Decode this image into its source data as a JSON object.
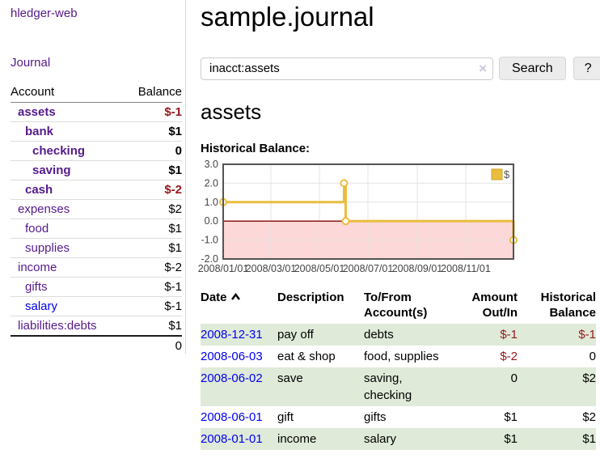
{
  "sidebar": {
    "app_title": "hledger-web",
    "nav": {
      "journal_label": "Journal"
    },
    "accounts_table": {
      "headers": {
        "account": "Account",
        "balance": "Balance"
      },
      "rows": [
        {
          "name": "assets",
          "indent": 0,
          "strong": true,
          "balance": "$-1"
        },
        {
          "name": "bank",
          "indent": 1,
          "strong": true,
          "balance": "$1"
        },
        {
          "name": "checking",
          "indent": 2,
          "strong": true,
          "balance": "0"
        },
        {
          "name": "saving",
          "indent": 2,
          "strong": true,
          "balance": "$1"
        },
        {
          "name": "cash",
          "indent": 1,
          "strong": true,
          "balance": "$-2"
        },
        {
          "name": "expenses",
          "indent": 0,
          "strong": false,
          "balance": "$2"
        },
        {
          "name": "food",
          "indent": 1,
          "strong": false,
          "balance": "$1"
        },
        {
          "name": "supplies",
          "indent": 1,
          "strong": false,
          "balance": "$1"
        },
        {
          "name": "income",
          "indent": 0,
          "strong": false,
          "balance": "$-2"
        },
        {
          "name": "gifts",
          "indent": 1,
          "strong": false,
          "balance": "$-1"
        },
        {
          "name": "salary",
          "indent": 1,
          "strong": false,
          "balance": "$-1",
          "blue": true
        },
        {
          "name": "liabilities:debts",
          "indent": 0,
          "strong": false,
          "balance": "$1"
        }
      ],
      "total": "0"
    }
  },
  "header": {
    "title": "sample.journal"
  },
  "search": {
    "query": "inacct:assets",
    "clear_icon": "×",
    "button_label": "Search",
    "help_label": "?"
  },
  "account_page": {
    "heading": "assets"
  },
  "chart_data": {
    "type": "line",
    "title": "Historical Balance:",
    "step": true,
    "grid": true,
    "legend_position": "top-right",
    "series": [
      {
        "name": "$",
        "color": "#e9bd3e",
        "points": [
          [
            "2008-01-01",
            1
          ],
          [
            "2008-06-01",
            2
          ],
          [
            "2008-06-03",
            0
          ],
          [
            "2008-12-31",
            -1
          ]
        ]
      }
    ],
    "x_range": [
      "2008-01-01",
      "2008-12-31"
    ],
    "x_ticks": [
      "2008/01/01",
      "2008/03/01",
      "2008/05/01",
      "2008/07/01",
      "2008/09/01",
      "2008/11/01"
    ],
    "y_ticks": [
      3.0,
      2.0,
      1.0,
      0.0,
      -1.0,
      -2.0
    ],
    "ylim": [
      -2,
      3
    ],
    "negative_region_color": "#fcd8d8",
    "zero_line_color": "#8c1717",
    "border_color": "#545454"
  },
  "register": {
    "headers": {
      "date": "Date",
      "date_sort_icon": "chevron-up",
      "description": "Description",
      "accounts": "To/From Account(s)",
      "amount": "Amount Out/In",
      "balance": "Historical Balance"
    },
    "rows": [
      {
        "date": "2008-12-31",
        "description": "pay off",
        "accounts": "debts",
        "amount": "$-1",
        "balance": "$-1"
      },
      {
        "date": "2008-06-03",
        "description": "eat & shop",
        "accounts": "food, supplies",
        "amount": "$-2",
        "balance": "0"
      },
      {
        "date": "2008-06-02",
        "description": "save",
        "accounts": "saving, checking",
        "amount": "0",
        "balance": "$2"
      },
      {
        "date": "2008-06-01",
        "description": "gift",
        "accounts": "gifts",
        "amount": "$1",
        "balance": "$2"
      },
      {
        "date": "2008-01-01",
        "description": "income",
        "accounts": "salary",
        "amount": "$1",
        "balance": "$1"
      }
    ]
  },
  "colors": {
    "link_purple": "#551a8b",
    "link_blue": "#0000ee",
    "negative_strong": "#96181b",
    "negative_light": "#c56f6f",
    "row_stripe_green": "#dfead9",
    "chart_gold": "#e9bd3e",
    "chart_negative_fill": "#fcd8d8",
    "chart_zero_line": "#8c1717"
  }
}
